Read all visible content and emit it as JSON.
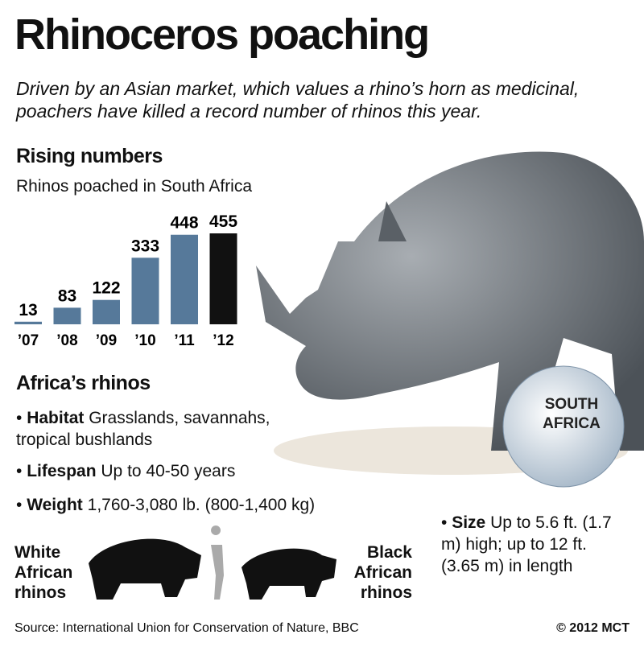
{
  "header": {
    "title": "Rhinoceros poaching",
    "subtitle": "Driven by an Asian market, which values a rhino’s horn as medicinal, poachers have killed a record number of rhinos this year."
  },
  "chart_data": {
    "type": "bar",
    "title": "Rising numbers",
    "subtitle": "Rhinos poached in South Africa",
    "categories": [
      "’07",
      "’08",
      "’09",
      "’10",
      "’11",
      "’12"
    ],
    "values": [
      13,
      83,
      122,
      333,
      448,
      455
    ],
    "colors": [
      "#56799a",
      "#56799a",
      "#56799a",
      "#56799a",
      "#56799a",
      "#111111"
    ]
  },
  "globe": {
    "label": "SOUTH AFRICA"
  },
  "facts": {
    "title": "Africa’s rhinos",
    "items": [
      {
        "label": "Habitat",
        "text": "Grasslands, savannahs, tropical bushlands"
      },
      {
        "label": "Lifespan",
        "text": "Up to 40-50 years"
      },
      {
        "label": "Weight",
        "text": "1,760-3,080 lb. (800-1,400 kg)"
      },
      {
        "label": "Size",
        "text": "Up to 5.6 ft. (1.7 m) high; up to 12 ft. (3.65 m) in length"
      }
    ]
  },
  "species": {
    "white": "White African rhinos",
    "black": "Black African rhinos"
  },
  "footer": {
    "source": "Source: International Union for Conservation of Nature, BBC",
    "credit": "© 2012 MCT"
  }
}
